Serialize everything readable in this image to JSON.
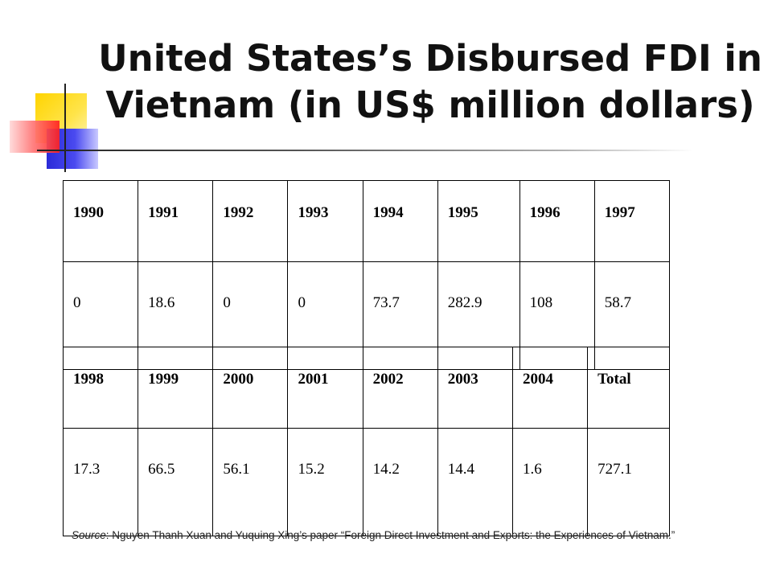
{
  "title": {
    "line1": "United States’s Disbursed FDI in",
    "line2": "Vietnam (in US$ million dollars)"
  },
  "table1": {
    "headers": [
      "1990",
      "1991",
      "1992",
      "1993",
      "1994",
      "1995",
      "1996",
      "1997"
    ],
    "values": [
      "0",
      "18.6",
      "0",
      "0",
      "73.7",
      "282.9",
      "108",
      "58.7"
    ]
  },
  "table2": {
    "headers": [
      "1998",
      "1999",
      "2000",
      "2001",
      "2002",
      "2003",
      "2004",
      "Total"
    ],
    "values": [
      "17.3",
      "66.5",
      "56.1",
      "15.2",
      "14.2",
      "14.4",
      "1.6",
      "727.1"
    ]
  },
  "source": {
    "label": "Source",
    "text": ": Nguyen Thanh Xuan and Yuquing Xing’s paper “Foreign Direct Investment and Exports: the Experiences of Vietnam.”"
  },
  "colors": {
    "ornament_yellow": "#ffd400",
    "ornament_blue": "#2b2bd8",
    "ornament_red": "#ff2020"
  }
}
